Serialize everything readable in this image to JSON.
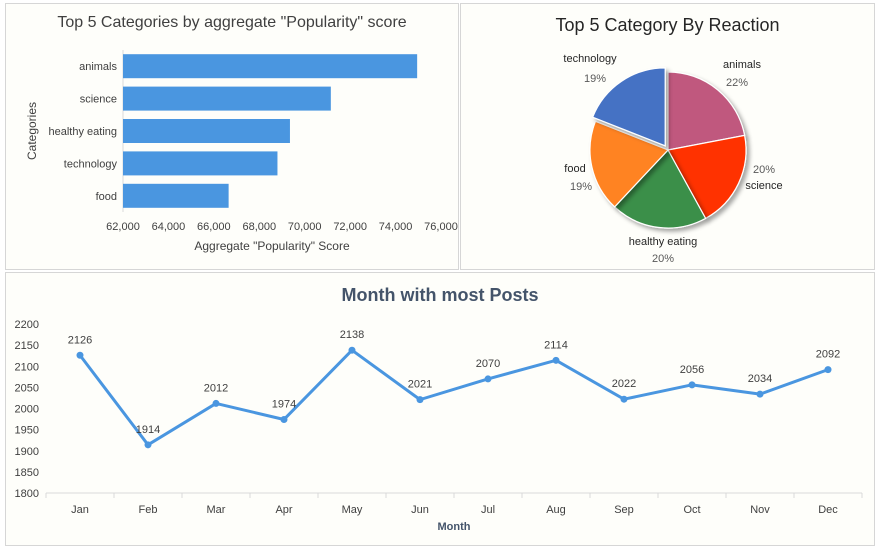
{
  "chart_data": [
    {
      "type": "bar",
      "orientation": "horizontal",
      "title": "Top 5 Categories by aggregate \"Popularity\" score",
      "xlabel": "Aggregate \"Popularity\" Score",
      "ylabel": "Categories",
      "categories": [
        "animals",
        "science",
        "healthy eating",
        "technology",
        "food"
      ],
      "values": [
        74950,
        71150,
        69350,
        68800,
        66650
      ],
      "xlim": [
        62000,
        76000
      ],
      "xticks": [
        "62,000",
        "64,000",
        "66,000",
        "68,000",
        "70,000",
        "72,000",
        "74,000",
        "76,000"
      ],
      "color": "#4a96e0",
      "grid": false
    },
    {
      "type": "pie",
      "title": "Top 5 Category By Reaction",
      "slices": [
        {
          "label": "animals",
          "value": 22,
          "pct": "22%",
          "color": "#c0587e"
        },
        {
          "label": "science",
          "value": 20,
          "pct": "20%",
          "color": "#ff3300"
        },
        {
          "label": "healthy eating",
          "value": 20,
          "pct": "20%",
          "color": "#3a8f48"
        },
        {
          "label": "food",
          "value": 19,
          "pct": "19%",
          "color": "#ff8321"
        },
        {
          "label": "technology",
          "value": 19,
          "pct": "19%",
          "color": "#4472c4"
        }
      ]
    },
    {
      "type": "line",
      "title": "Month with most Posts",
      "xlabel": "Month",
      "ylabel": "",
      "categories": [
        "Jan",
        "Feb",
        "Mar",
        "Apr",
        "May",
        "Jun",
        "Jul",
        "Aug",
        "Sep",
        "Oct",
        "Nov",
        "Dec"
      ],
      "values": [
        2126,
        1914,
        2012,
        1974,
        2138,
        2021,
        2070,
        2114,
        2022,
        2056,
        2034,
        2092
      ],
      "ylim": [
        1800,
        2200
      ],
      "yticks": [
        "1800",
        "1850",
        "1900",
        "1950",
        "2000",
        "2050",
        "2100",
        "2150",
        "2200"
      ],
      "color": "#4a96e0",
      "grid": false
    }
  ]
}
